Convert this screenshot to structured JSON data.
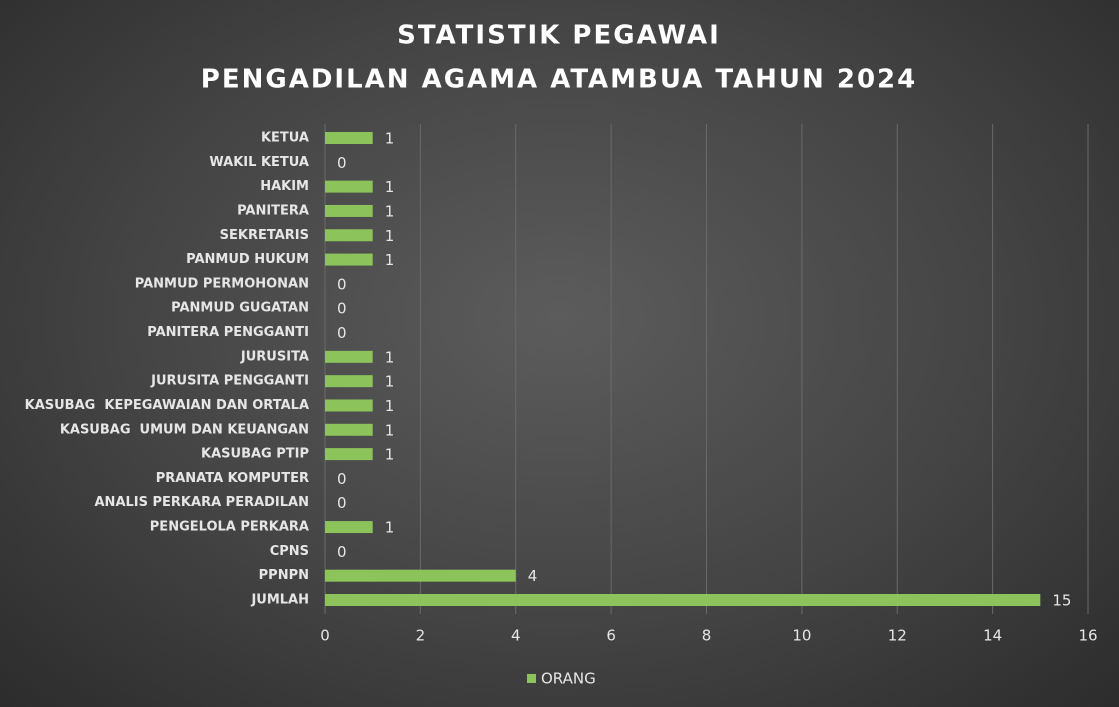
{
  "chart_data": {
    "type": "barh",
    "title": "STATISTIK PEGAWAI",
    "subtitle": "PENGADILAN AGAMA ATAMBUA TAHUN 2024",
    "categories": [
      "KETUA",
      "WAKIL KETUA",
      "HAKIM",
      "PANITERA",
      "SEKRETARIS",
      "PANMUD HUKUM",
      "PANMUD PERMOHONAN",
      "PANMUD GUGATAN",
      "PANITERA PENGGANTI",
      "JURUSITA",
      "JURUSITA PENGGANTI",
      "KASUBAG  KEPEGAWAIAN DAN ORTALA",
      "KASUBAG  UMUM DAN KEUANGAN",
      "KASUBAG PTIP",
      "PRANATA KOMPUTER",
      "ANALIS PERKARA PERADILAN",
      "PENGELOLA PERKARA",
      "CPNS",
      "PPNPN",
      "JUMLAH"
    ],
    "series": [
      {
        "name": "ORANG",
        "color": "#8cc35a",
        "values": [
          1,
          0,
          1,
          1,
          1,
          1,
          0,
          0,
          0,
          1,
          1,
          1,
          1,
          1,
          0,
          0,
          1,
          0,
          4,
          15
        ]
      }
    ],
    "xlim": [
      0,
      16
    ],
    "xticks": [
      0,
      2,
      4,
      6,
      8,
      10,
      12,
      14,
      16
    ],
    "grid": true,
    "legend": "bottom"
  }
}
